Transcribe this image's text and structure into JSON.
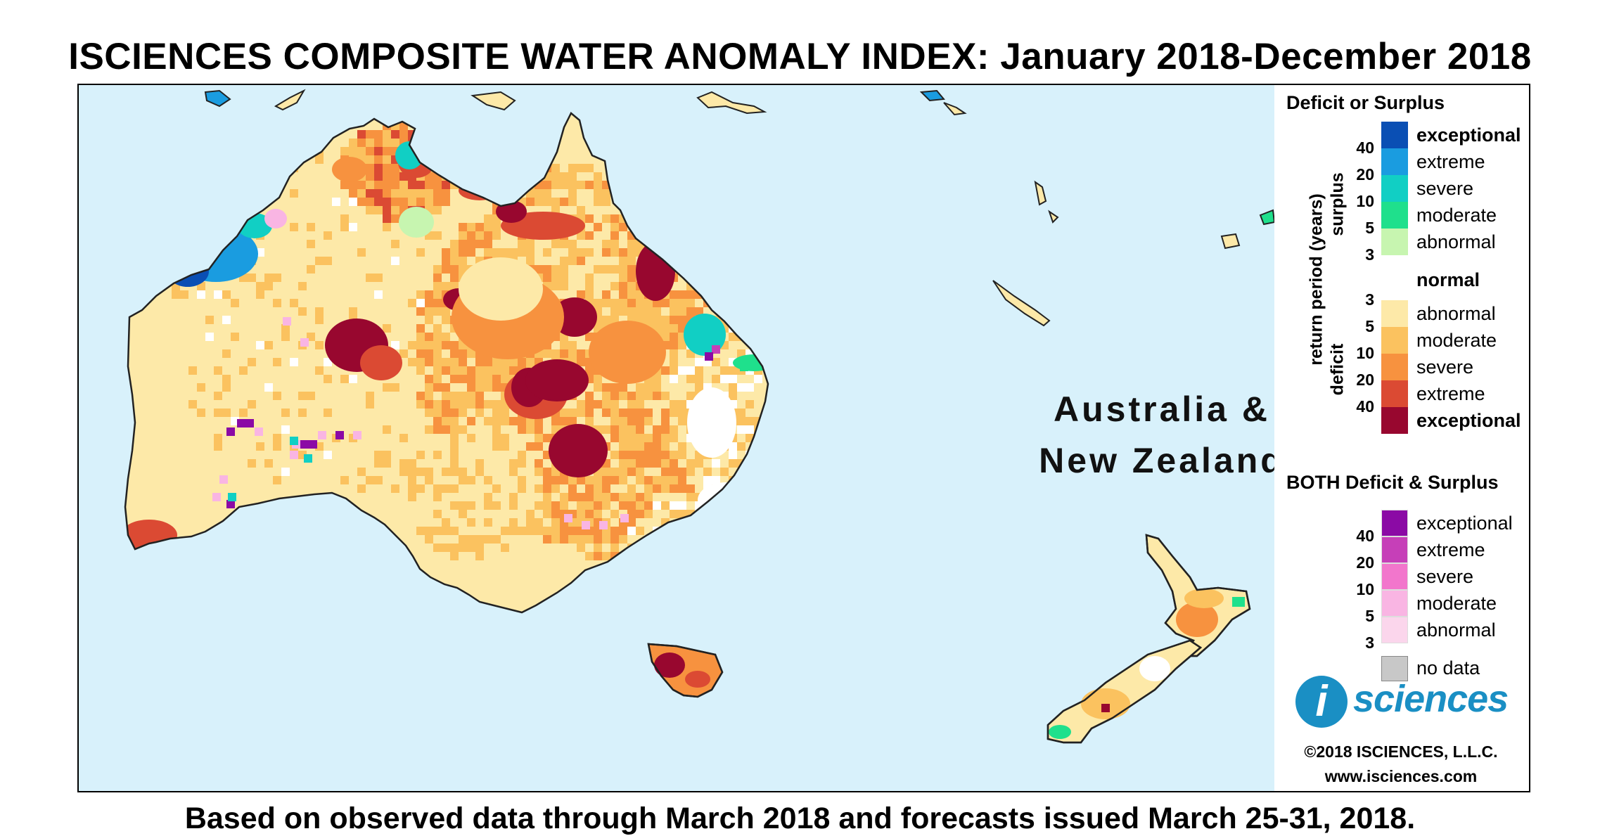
{
  "title": "ISCIENCES COMPOSITE WATER ANOMALY INDEX: January 2018-December 2018",
  "footer": "Based on observed data through March 2018 and forecasts issued March 25-31, 2018.",
  "region_label": {
    "line1": "Australia &",
    "line2": "New Zealand"
  },
  "legend": {
    "section1_title": "Deficit or Surplus",
    "axis_label": "return period (years)",
    "surplus_label": "surplus",
    "deficit_label": "deficit",
    "surplus_ticks": [
      "40",
      "20",
      "10",
      "5",
      "3"
    ],
    "deficit_ticks": [
      "3",
      "5",
      "10",
      "20",
      "40"
    ],
    "surplus_classes": [
      {
        "label": "exceptional",
        "color": "#0a4fb4",
        "bold": true
      },
      {
        "label": "extreme",
        "color": "#1a9ce0",
        "bold": false
      },
      {
        "label": "severe",
        "color": "#11cfc4",
        "bold": false
      },
      {
        "label": "moderate",
        "color": "#1fe08c",
        "bold": false
      },
      {
        "label": "abnormal",
        "color": "#c7f5b0",
        "bold": false
      }
    ],
    "normal": {
      "label": "normal",
      "color": "#ffffff"
    },
    "deficit_classes": [
      {
        "label": "abnormal",
        "color": "#fde9a8",
        "bold": false
      },
      {
        "label": "moderate",
        "color": "#fbc25f",
        "bold": false
      },
      {
        "label": "severe",
        "color": "#f7923f",
        "bold": false
      },
      {
        "label": "extreme",
        "color": "#db4a33",
        "bold": false
      },
      {
        "label": "exceptional",
        "color": "#98072f",
        "bold": true
      }
    ],
    "section2_title": "BOTH Deficit & Surplus",
    "both_ticks": [
      "40",
      "20",
      "10",
      "5",
      "3"
    ],
    "both_classes": [
      {
        "label": "exceptional",
        "color": "#8b0aa5"
      },
      {
        "label": "extreme",
        "color": "#c63fb8"
      },
      {
        "label": "severe",
        "color": "#f276cc"
      },
      {
        "label": "moderate",
        "color": "#f9b5e3"
      },
      {
        "label": "abnormal",
        "color": "#fbd6ec"
      }
    ],
    "no_data": {
      "label": "no data",
      "color": "#c8c8c8"
    }
  },
  "branding": {
    "logo_letter": "i",
    "logo_word": "sciences",
    "copyright": "©2018 ISCIENCES, L.L.C.",
    "website": "www.isciences.com"
  },
  "map_colors": {
    "ocean": "#d8f1fb",
    "land_outline": "#222222"
  }
}
